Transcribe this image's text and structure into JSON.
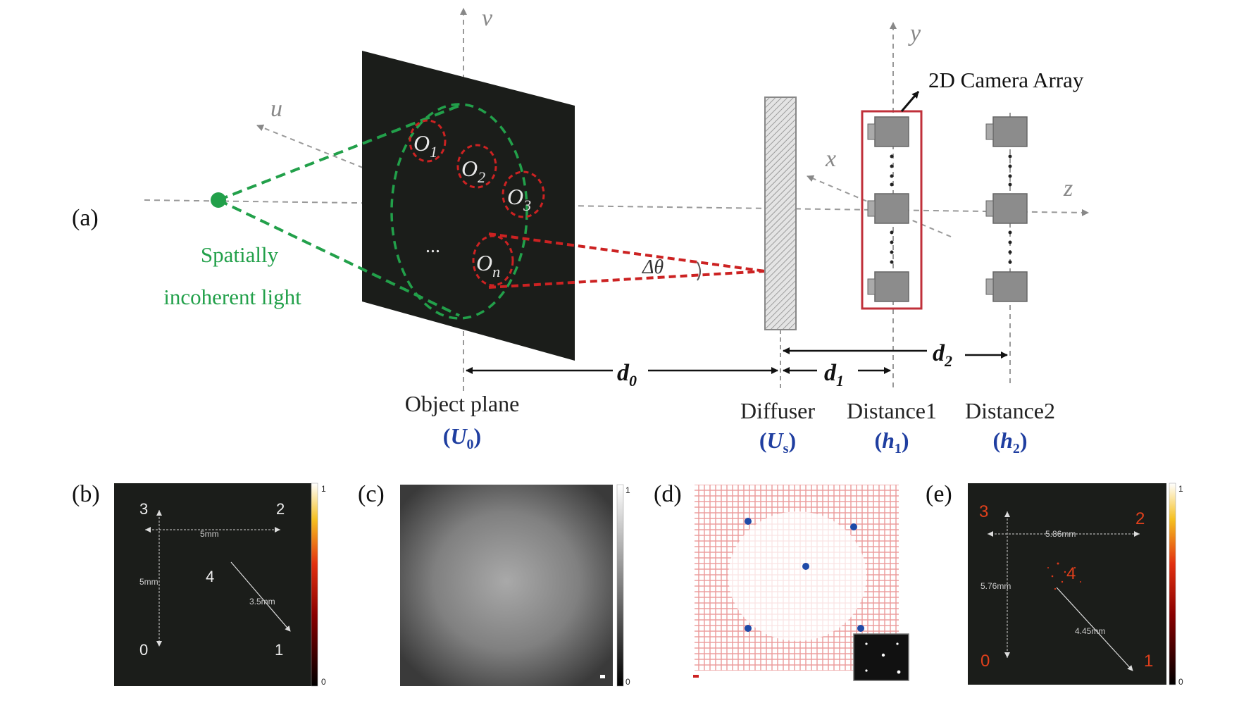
{
  "panel_a": {
    "label": "(a)",
    "axes": {
      "u": "u",
      "v": "v",
      "x": "x",
      "y": "y",
      "z": "z"
    },
    "light": {
      "line1": "Spatially",
      "line2": "incoherent light",
      "color": "#22a04a"
    },
    "objects": {
      "o_letter": "O",
      "o1": "1",
      "o2": "2",
      "o3": "3",
      "on": "n",
      "ellipsis": "..."
    },
    "angle": "Δθ",
    "camera_array_label": "2D Camera Array",
    "distances": {
      "d_letter": "d",
      "d0": "0",
      "d1": "1",
      "d2": "2"
    },
    "planes": {
      "object": {
        "name": "Object plane",
        "sym": "U",
        "sub": "0"
      },
      "diffuser": {
        "name": "Diffuser",
        "sym": "U",
        "sub": "s"
      },
      "distance1": {
        "name": "Distance1",
        "sym": "h",
        "sub": "1"
      },
      "distance2": {
        "name": "Distance2",
        "sym": "h",
        "sub": "2"
      }
    },
    "colors": {
      "object_highlight": "#cc2222",
      "plane_symbol": "#1f3ea0",
      "camera_box": "#c0303a"
    }
  },
  "panel_b": {
    "label": "(b)",
    "points": [
      "3",
      "2",
      "4",
      "0",
      "1"
    ],
    "dist_horizontal": "5mm",
    "dist_vertical": "5mm",
    "dist_diagonal": "3.5mm",
    "colorbar": {
      "max": "1",
      "min": "0"
    }
  },
  "panel_c": {
    "label": "(c)",
    "colorbar": {
      "max": "1",
      "min": "0"
    }
  },
  "panel_d": {
    "label": "(d)"
  },
  "panel_e": {
    "label": "(e)",
    "points": [
      "3",
      "2",
      "4",
      "0",
      "1"
    ],
    "dist_horizontal": "5.86mm",
    "dist_vertical": "5.76mm",
    "dist_diagonal": "4.45mm",
    "colorbar": {
      "max": "1",
      "min": "0"
    }
  }
}
